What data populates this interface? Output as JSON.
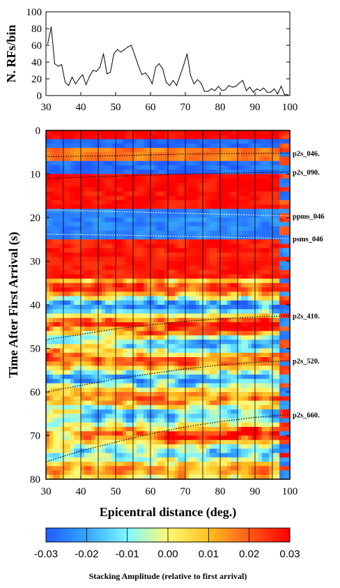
{
  "chart_data": [
    {
      "type": "line",
      "ylabel": "N. RFs/bin",
      "xlim": [
        30,
        100
      ],
      "ylim": [
        0,
        100
      ],
      "xticks": [
        "30",
        "40",
        "50",
        "60",
        "70",
        "80",
        "90",
        "100"
      ],
      "yticks": [
        "0",
        "20",
        "40",
        "60",
        "80",
        "100"
      ],
      "x": [
        30,
        31,
        32,
        33,
        34,
        35,
        36,
        37,
        38,
        39,
        40,
        41,
        42,
        43,
        44,
        45,
        46,
        47,
        48,
        49,
        50,
        51,
        52,
        53,
        54,
        55,
        56,
        57,
        58,
        59,
        60,
        61,
        62,
        63,
        64,
        65,
        66,
        67,
        68,
        69,
        70,
        71,
        72,
        73,
        74,
        75,
        76,
        77,
        78,
        79,
        80,
        81,
        82,
        83,
        84,
        85,
        86,
        87,
        88,
        89,
        90,
        91,
        92,
        93,
        94,
        95,
        96,
        97,
        98,
        99
      ],
      "values": [
        62,
        82,
        38,
        35,
        37,
        16,
        12,
        22,
        14,
        20,
        25,
        13,
        23,
        30,
        29,
        34,
        50,
        26,
        28,
        50,
        55,
        52,
        55,
        58,
        60,
        48,
        36,
        25,
        27,
        22,
        14,
        34,
        38,
        32,
        16,
        12,
        18,
        12,
        24,
        36,
        50,
        24,
        14,
        19,
        15,
        5,
        5,
        8,
        6,
        11,
        6,
        7,
        12,
        10,
        11,
        15,
        18,
        6,
        10,
        4,
        8,
        6,
        9,
        4,
        4,
        8,
        2,
        11,
        1,
        1
      ]
    },
    {
      "type": "heatmap",
      "xlabel": "Epicentral distance (deg.)",
      "ylabel": "Time After First Arrival (s)",
      "xlim": [
        30,
        100
      ],
      "ylim": [
        80,
        0
      ],
      "xticks": [
        "30",
        "40",
        "50",
        "60",
        "70",
        "80",
        "90",
        "100"
      ],
      "yticks": [
        "0",
        "10",
        "20",
        "30",
        "40",
        "50",
        "60",
        "70",
        "80"
      ],
      "phase_curves": [
        {
          "name": "p2s_046.",
          "x": [
            30,
            50,
            70,
            100
          ],
          "y": [
            6.0,
            5.8,
            5.4,
            5.2
          ]
        },
        {
          "name": "p2s_090.",
          "x": [
            30,
            50,
            70,
            100
          ],
          "y": [
            11.0,
            10.5,
            10.0,
            9.5
          ]
        },
        {
          "name": "ppms_046",
          "x": [
            30,
            50,
            70,
            100
          ],
          "y": [
            18.2,
            18.6,
            19.0,
            19.6
          ]
        },
        {
          "name": "psms_046",
          "x": [
            30,
            50,
            70,
            100
          ],
          "y": [
            23.8,
            24.0,
            24.3,
            24.8
          ]
        },
        {
          "name": "p2s_410.",
          "x": [
            30,
            40,
            50,
            60,
            70,
            80,
            90,
            100
          ],
          "y": [
            48.0,
            46.8,
            45.5,
            44.6,
            43.8,
            43.2,
            42.8,
            42.5
          ]
        },
        {
          "name": "p2s_520.",
          "x": [
            30,
            40,
            50,
            60,
            70,
            80,
            90,
            100
          ],
          "y": [
            60.0,
            58.5,
            57.0,
            55.8,
            54.7,
            53.8,
            53.2,
            52.8
          ]
        },
        {
          "name": "p2s_660.",
          "x": [
            30,
            40,
            50,
            60,
            70,
            80,
            90,
            100
          ],
          "y": [
            76.0,
            73.5,
            71.5,
            69.6,
            68.0,
            66.8,
            65.8,
            65.2
          ]
        }
      ]
    },
    {
      "type": "colorbar",
      "label": "Stacking Amplitude (relative to first arrival)",
      "range": [
        -0.03,
        0.03
      ],
      "ticks": [
        "-0.03",
        "-0.02",
        "-0.01",
        "0.00",
        "0.01",
        "0.02",
        "0.03"
      ],
      "colors": [
        "#1f5bff",
        "#35a6ff",
        "#7ff7ff",
        "#fffa73",
        "#ffc020",
        "#ff5a1a",
        "#ff0000"
      ]
    }
  ]
}
